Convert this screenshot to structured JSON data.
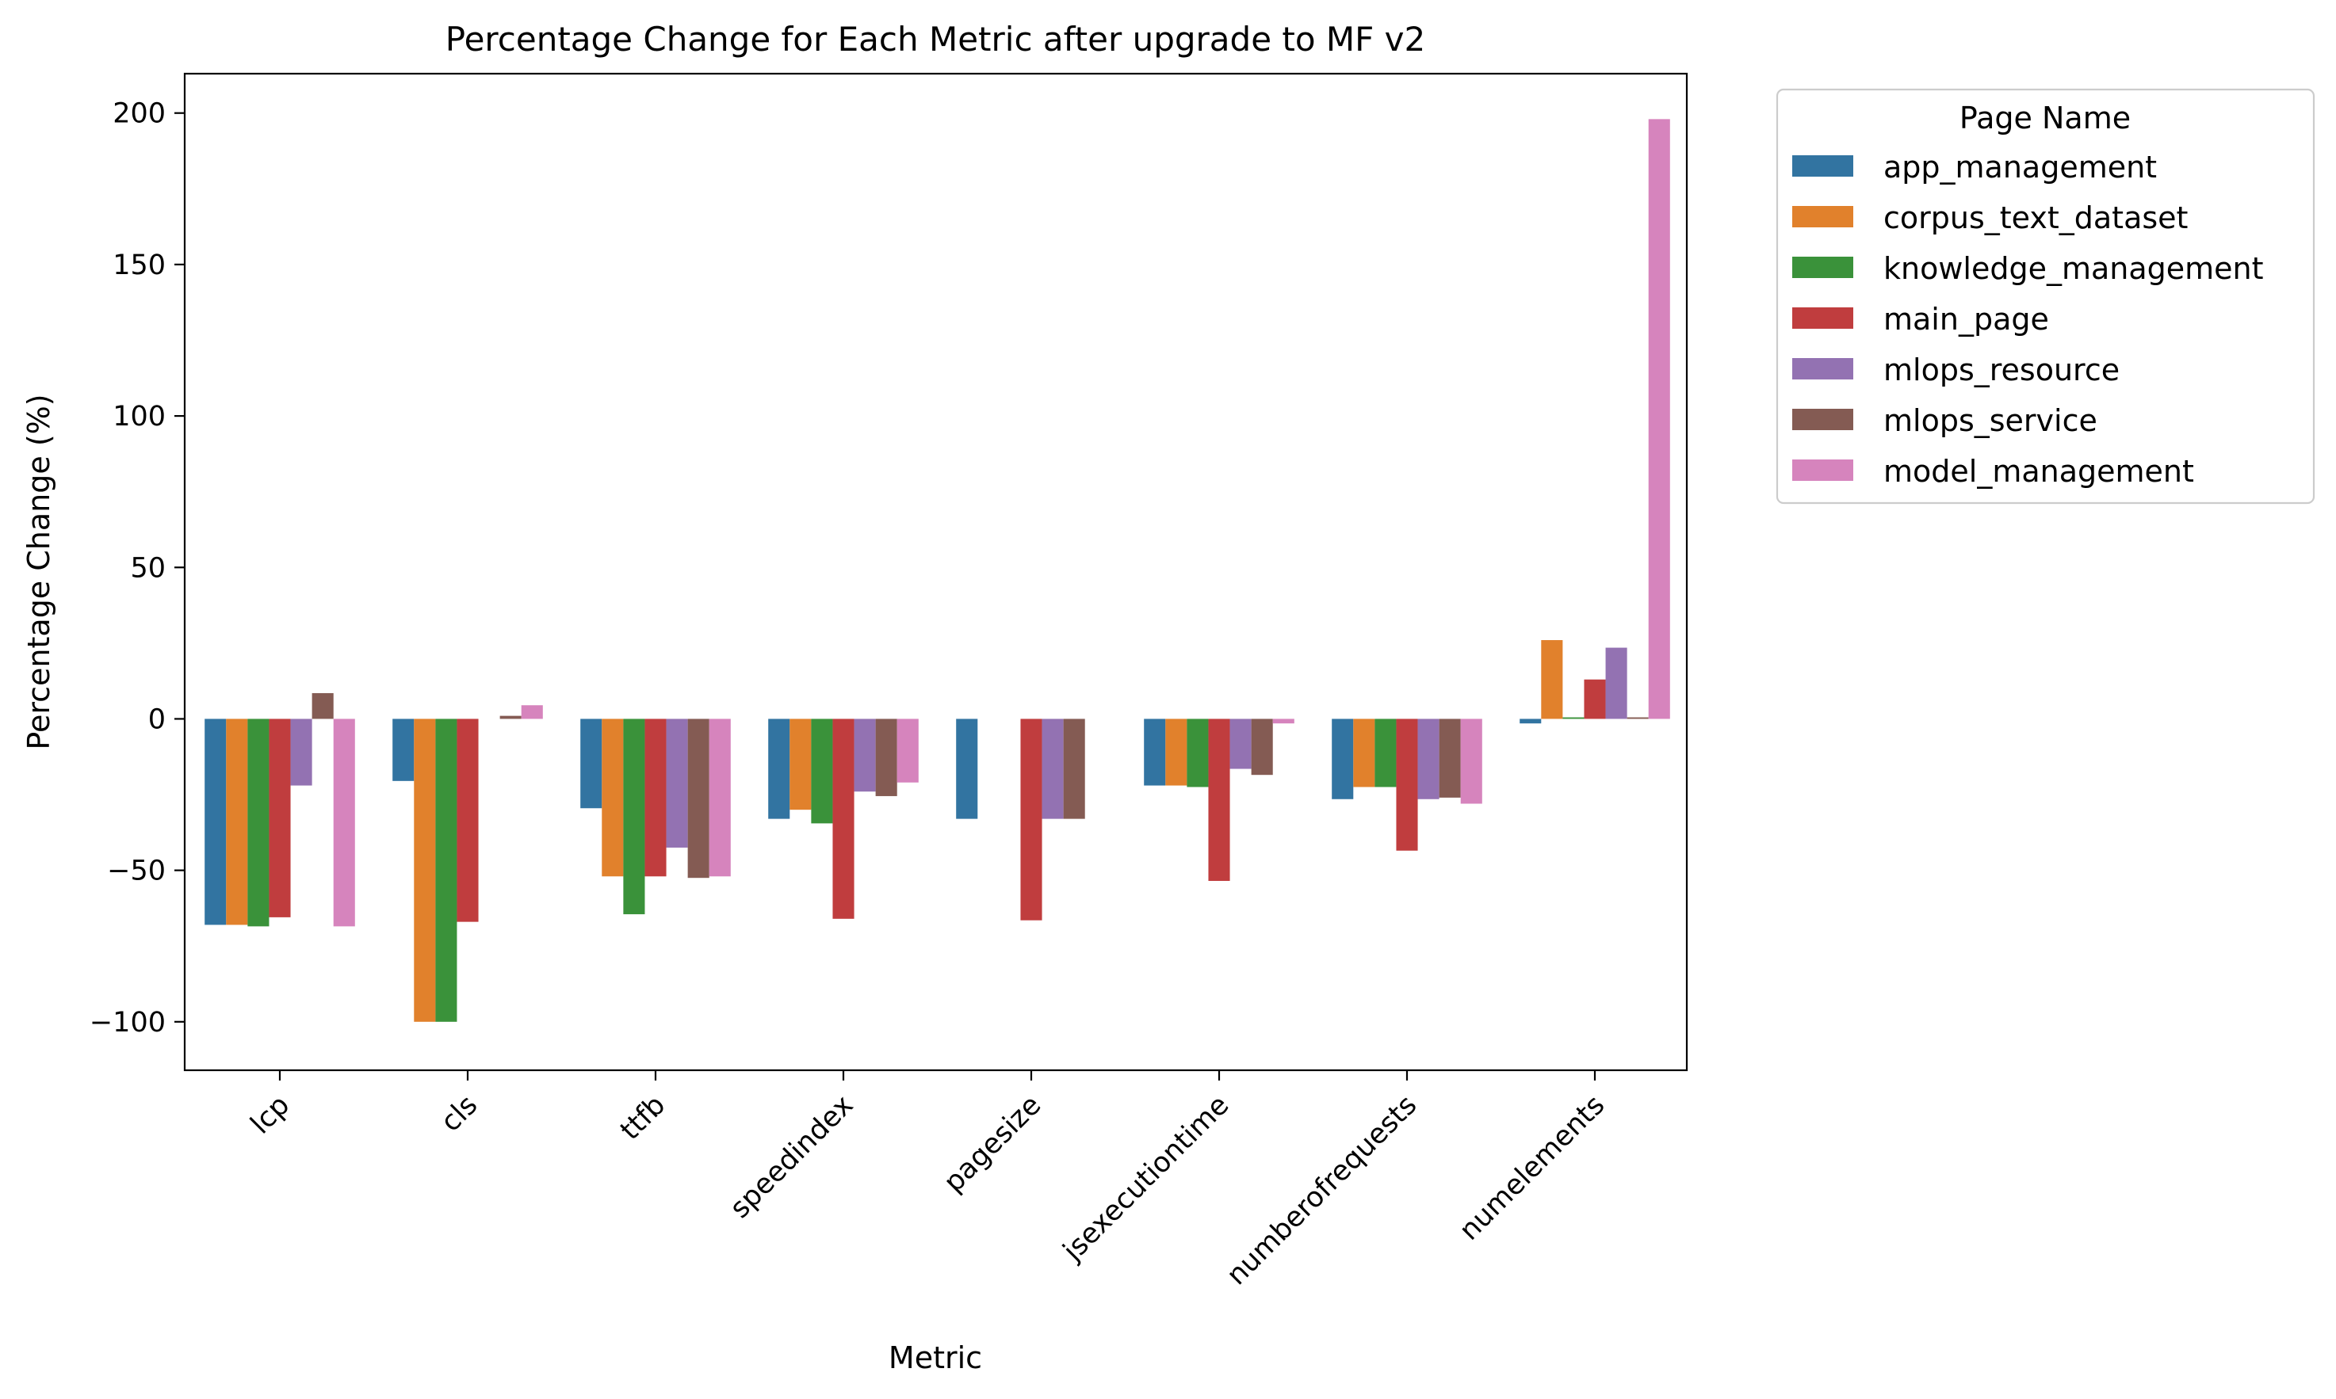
{
  "chart_data": {
    "type": "bar",
    "title": "Percentage Change for Each Metric after upgrade to MF v2",
    "xlabel": "Metric",
    "ylabel": "Percentage Change (%)",
    "ylim": [
      -116,
      213
    ],
    "yticks": [
      -100,
      -50,
      0,
      50,
      100,
      150,
      200
    ],
    "ytick_labels": [
      "−100",
      "−50",
      "0",
      "50",
      "100",
      "150",
      "200"
    ],
    "grid": false,
    "legend": {
      "title": "Page Name",
      "placement": "outside-top-right"
    },
    "categories": [
      "lcp",
      "cls",
      "ttfb",
      "speedindex",
      "pagesize",
      "jsexecutiontime",
      "numberofrequests",
      "numelements"
    ],
    "series": [
      {
        "name": "app_management",
        "color": "#3274a1",
        "values": [
          -68,
          -20.5,
          -29.5,
          -33,
          -33,
          -22,
          -26.5,
          -1.5
        ]
      },
      {
        "name": "corpus_text_dataset",
        "color": "#e1812c",
        "values": [
          -68,
          -100,
          -52,
          -30,
          0,
          -22,
          -22.5,
          26
        ]
      },
      {
        "name": "knowledge_management",
        "color": "#3a923a",
        "values": [
          -68.5,
          -100,
          -64.5,
          -34.5,
          0,
          -22.5,
          -22.5,
          0.5
        ]
      },
      {
        "name": "main_page",
        "color": "#c03d3e",
        "values": [
          -65.5,
          -67,
          -52,
          -66,
          -66.5,
          -53.5,
          -43.5,
          13
        ]
      },
      {
        "name": "mlops_resource",
        "color": "#9372b2",
        "values": [
          -22,
          0,
          -42.5,
          -24,
          -33,
          -16.5,
          -26.5,
          23.5
        ]
      },
      {
        "name": "mlops_service",
        "color": "#845b53",
        "values": [
          8.5,
          1,
          -52.5,
          -25.5,
          -33,
          -18.5,
          -26,
          0.5
        ]
      },
      {
        "name": "model_management",
        "color": "#d684bd",
        "values": [
          -68.5,
          4.5,
          -52,
          -21,
          0,
          -1.5,
          -28,
          198
        ]
      }
    ]
  }
}
